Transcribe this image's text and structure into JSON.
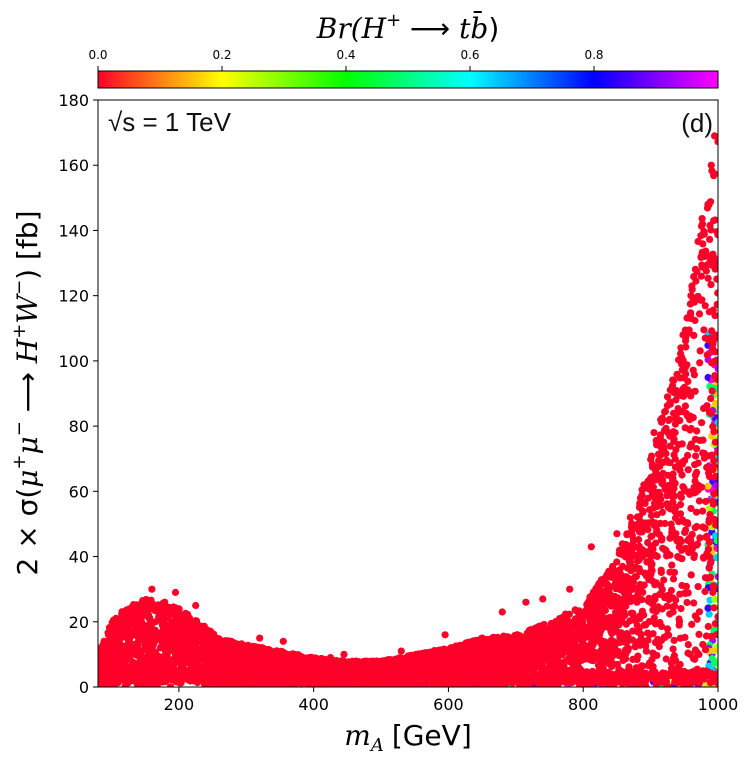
{
  "chart_data": {
    "type": "scatter",
    "title": "",
    "colorbar": {
      "label_prefix": "Br(",
      "label_H": "H",
      "label_plus": "+",
      "label_arrow": " ⟶ ",
      "label_t": "t",
      "label_bbar": "b̄",
      "label_suffix": ")",
      "range": [
        0,
        1
      ],
      "ticks": [
        0.0,
        0.2,
        0.4,
        0.6,
        0.8
      ],
      "tick_labels": [
        "0.0",
        "0.2",
        "0.4",
        "0.6",
        "0.8"
      ],
      "colormap": "gist_rainbow_r",
      "colormap_stops": [
        "#ff0028",
        "#ffff00",
        "#00ff00",
        "#00ffff",
        "#0000ff",
        "#ff00ff"
      ],
      "placement": "top"
    },
    "xlabel_var": "m",
    "xlabel_sub": "A",
    "xlabel_unit": "[GeV]",
    "ylabel_left": "2 × σ(",
    "ylabel_mu1": "μ",
    "ylabel_mu1_sup": "+",
    "ylabel_mu2": "μ",
    "ylabel_mu2_sup": "−",
    "ylabel_arrow": " ⟶ ",
    "ylabel_H": "H",
    "ylabel_H_sup": "+",
    "ylabel_W": "W",
    "ylabel_W_sup": "−",
    "ylabel_right": ") [fb]",
    "xlim": [
      80,
      1000
    ],
    "ylim": [
      0,
      180
    ],
    "xticks": [
      200,
      400,
      600,
      800,
      1000
    ],
    "xtick_labels": [
      "200",
      "400",
      "600",
      "800",
      "1000"
    ],
    "yticks": [
      0,
      20,
      40,
      60,
      80,
      100,
      120,
      140,
      160,
      180
    ],
    "ytick_labels": [
      "0",
      "20",
      "40",
      "60",
      "80",
      "100",
      "120",
      "140",
      "160",
      "180"
    ],
    "grid": false,
    "annotations": {
      "energy": "√s = 1 TeV",
      "panel": "(d)"
    },
    "point_color_dominant": "#ff0028",
    "upper_envelope": {
      "x": [
        80,
        100,
        120,
        150,
        180,
        200,
        230,
        260,
        300,
        350,
        400,
        450,
        500,
        550,
        600,
        650,
        700,
        750,
        800,
        850,
        880,
        900,
        920,
        940,
        960,
        980,
        1000
      ],
      "y": [
        10,
        20,
        24,
        27,
        26,
        24,
        20,
        15,
        13,
        11,
        9,
        8,
        8,
        10,
        12,
        15,
        16,
        20,
        25,
        40,
        55,
        70,
        85,
        100,
        125,
        150,
        168
      ]
    },
    "outliers": {
      "x": [
        160,
        195,
        225,
        320,
        355,
        425,
        445,
        530,
        595,
        650,
        680,
        715,
        740,
        780,
        812,
        830,
        850,
        870,
        885,
        890,
        905,
        915,
        925,
        935,
        945,
        952,
        960,
        965,
        975,
        985,
        990,
        995
      ],
      "y": [
        30,
        29,
        25,
        15,
        14,
        9,
        10,
        11,
        16,
        15,
        23,
        26,
        27,
        30,
        43,
        33,
        47,
        52,
        58,
        62,
        78,
        82,
        89,
        91,
        104,
        96,
        120,
        118,
        132,
        148,
        160,
        169
      ]
    }
  }
}
